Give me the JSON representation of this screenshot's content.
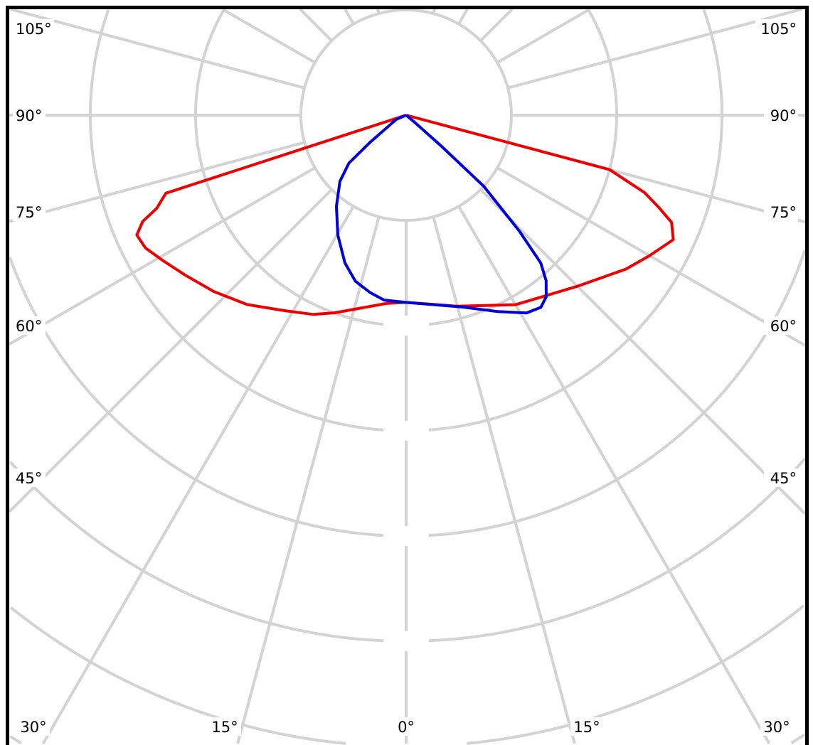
{
  "diagram": {
    "type": "polar-light-distribution",
    "angle_step_deg": 15,
    "ring_step": 100,
    "ring_labels": [
      "",
      "",
      "",
      ""
    ],
    "colors": {
      "grid": "#d3d3d3",
      "frame": "#000000",
      "curve_a": "#ee0000",
      "curve_b": "#0000dd"
    },
    "left_labels": [
      "105°",
      "90°",
      "75°",
      "60°",
      "45°"
    ],
    "right_labels": [
      "105°",
      "90°",
      "75°",
      "60°",
      "45°"
    ],
    "bottom_labels": [
      "30°",
      "15°",
      "0°",
      "15°",
      "30°"
    ],
    "curves": [
      {
        "color": "#ee0000",
        "points": [
          [
            -90,
            0
          ],
          [
            -72,
            240
          ],
          [
            -69.5,
            253
          ],
          [
            -68,
            270
          ],
          [
            -66,
            280
          ],
          [
            -63,
            278
          ],
          [
            -59,
            269
          ],
          [
            -54,
            259
          ],
          [
            -47.5,
            248
          ],
          [
            -40,
            235
          ],
          [
            -32,
            219
          ],
          [
            -25,
            209
          ],
          [
            -20,
            200
          ],
          [
            -6,
            180
          ],
          [
            0,
            178
          ],
          [
            15,
            188
          ],
          [
            30,
            208
          ],
          [
            45,
            230
          ],
          [
            55,
            255
          ],
          [
            60,
            267
          ],
          [
            65,
            280
          ],
          [
            68,
            272
          ],
          [
            70,
            255
          ],
          [
            72,
            238
          ],
          [
            75,
            200
          ],
          [
            90,
            0
          ]
        ]
      },
      {
        "color": "#0000dd",
        "points": [
          [
            -90,
            0
          ],
          [
            -67,
            10
          ],
          [
            -53,
            43
          ],
          [
            -50,
            71
          ],
          [
            -45,
            89
          ],
          [
            -37.4,
            109
          ],
          [
            -29.7,
            131
          ],
          [
            -22.5,
            152
          ],
          [
            -17,
            165
          ],
          [
            -11.5,
            172
          ],
          [
            -6.8,
            177
          ],
          [
            0,
            178
          ],
          [
            16.3,
            190
          ],
          [
            25,
            206
          ],
          [
            31.3,
            220
          ],
          [
            35,
            223
          ],
          [
            37.6,
            218
          ],
          [
            40.2,
            206
          ],
          [
            42.3,
            190
          ],
          [
            44.3,
            154
          ],
          [
            47.5,
            100
          ],
          [
            48.7,
            44
          ],
          [
            50,
            11
          ],
          [
            90,
            0
          ]
        ]
      }
    ]
  }
}
